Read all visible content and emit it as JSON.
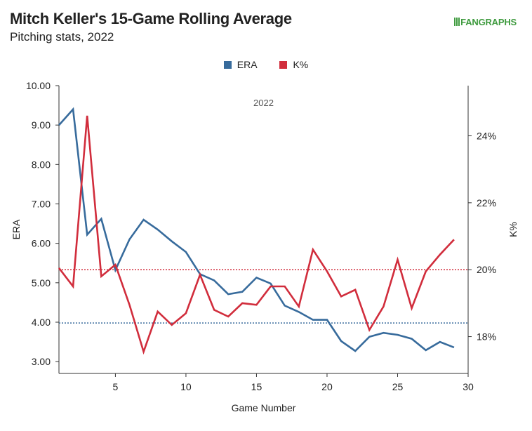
{
  "header": {
    "title": "Mitch Keller's 15-Game Rolling Average",
    "subtitle": "Pitching stats, 2022",
    "brand": "FANGRAPHS"
  },
  "chart_data": {
    "type": "line",
    "panel_label": "2022",
    "xlabel": "Game Number",
    "ylabel_left": "ERA",
    "ylabel_right": "K%",
    "xlim": [
      1,
      30
    ],
    "x_ticks": [
      5,
      10,
      15,
      20,
      25,
      30
    ],
    "ylim_left": [
      2.7,
      10.0
    ],
    "y_ticks_left": [
      "3.00",
      "4.00",
      "5.00",
      "6.00",
      "7.00",
      "8.00",
      "9.00",
      "10.00"
    ],
    "ylim_right": [
      16.9,
      25.5
    ],
    "y_ticks_right": [
      "18%",
      "20%",
      "22%",
      "24%"
    ],
    "grid": false,
    "legend_position": "top-center",
    "x": [
      1,
      2,
      3,
      4,
      5,
      6,
      7,
      8,
      9,
      10,
      11,
      12,
      13,
      14,
      15,
      16,
      17,
      18,
      19,
      20,
      21,
      22,
      23,
      24,
      25,
      26,
      27,
      28,
      29
    ],
    "series": [
      {
        "name": "ERA",
        "axis": "left",
        "color": "#376b9c",
        "values": [
          9.0,
          9.4,
          6.22,
          6.62,
          5.32,
          6.1,
          6.6,
          6.35,
          6.05,
          5.78,
          5.22,
          5.06,
          4.71,
          4.77,
          5.13,
          4.98,
          4.42,
          4.26,
          4.06,
          4.06,
          3.52,
          3.27,
          3.63,
          3.73,
          3.68,
          3.58,
          3.29,
          3.5,
          3.36
        ]
      },
      {
        "name": "K%",
        "axis": "right",
        "color": "#d12d3c",
        "values": [
          20.05,
          19.5,
          24.6,
          19.8,
          20.15,
          18.95,
          17.55,
          18.75,
          18.35,
          18.7,
          19.85,
          18.8,
          18.6,
          19.0,
          18.95,
          19.5,
          19.5,
          18.9,
          20.6,
          19.95,
          19.2,
          19.4,
          18.2,
          18.9,
          20.3,
          18.85,
          19.95,
          20.45,
          20.9
        ]
      }
    ],
    "reference_lines": [
      {
        "series": "ERA",
        "axis": "left",
        "value": 3.98,
        "style": "dotted",
        "color": "#376b9c"
      },
      {
        "series": "K%",
        "axis": "right",
        "value": 20.0,
        "style": "dotted",
        "color": "#d12d3c"
      }
    ]
  }
}
